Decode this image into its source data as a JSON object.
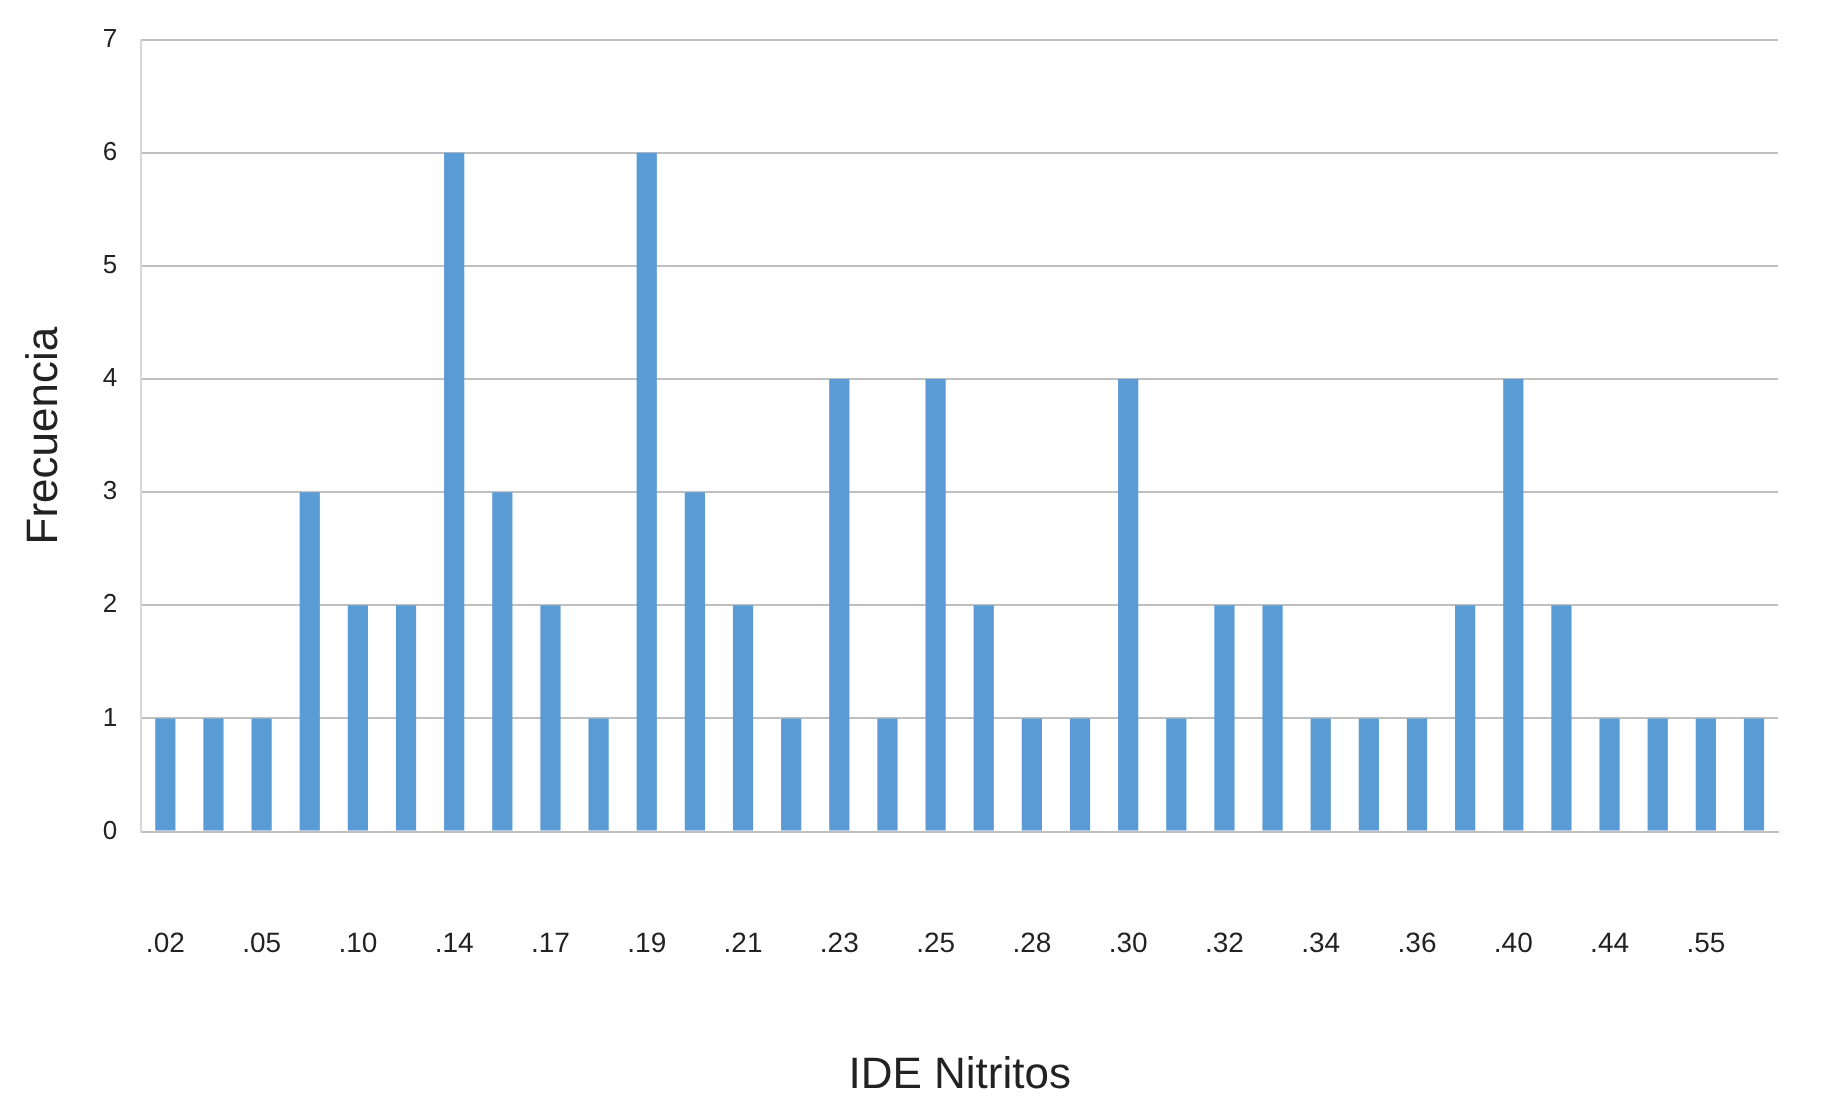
{
  "chart_data": {
    "type": "bar",
    "xlabel": "IDE Nitritos",
    "ylabel": "Frecuencia",
    "categories": [
      ".02",
      null,
      ".05",
      null,
      ".10",
      null,
      ".14",
      null,
      ".17",
      null,
      ".19",
      null,
      ".21",
      null,
      ".23",
      null,
      ".25",
      null,
      ".28",
      null,
      ".30",
      null,
      ".32",
      null,
      ".34",
      null,
      ".36",
      null,
      ".40",
      null,
      ".44",
      null,
      ".55",
      null
    ],
    "values": [
      1,
      1,
      1,
      3,
      2,
      2,
      6,
      3,
      2,
      1,
      6,
      3,
      2,
      1,
      4,
      1,
      4,
      2,
      1,
      1,
      4,
      1,
      2,
      2,
      1,
      1,
      1,
      2,
      4,
      2,
      1,
      1,
      1,
      1
    ],
    "color": "#5b9bd5",
    "ylim": [
      0,
      7
    ],
    "yticks": [
      0,
      1,
      2,
      3,
      4,
      5,
      6,
      7
    ],
    "grid": "y",
    "legend": false
  }
}
